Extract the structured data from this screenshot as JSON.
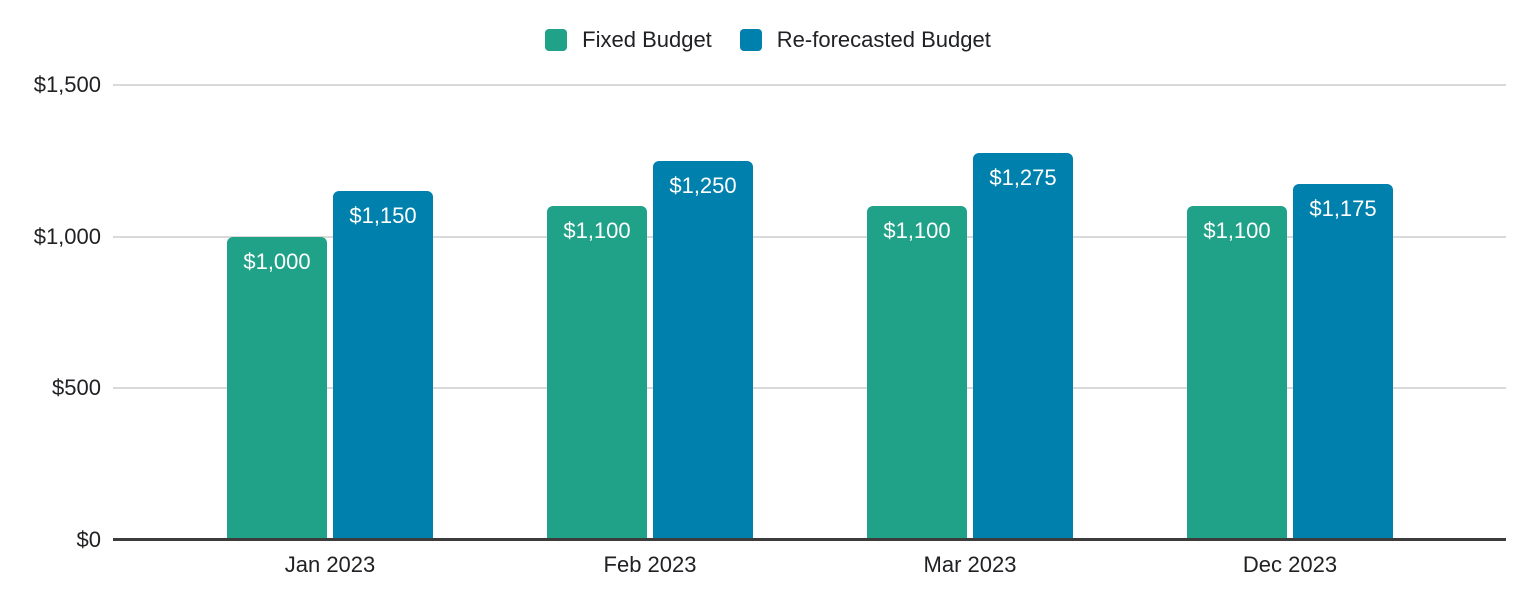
{
  "chart_data": {
    "type": "bar",
    "title": "",
    "xlabel": "",
    "ylabel": "",
    "categories": [
      "Jan 2023",
      "Feb 2023",
      "Mar 2023",
      "Dec 2023"
    ],
    "series": [
      {
        "name": "Fixed Budget",
        "color": "#1fa287",
        "values": [
          1000,
          1100,
          1100,
          1100
        ],
        "labels": [
          "$1,000",
          "$1,100",
          "$1,100",
          "$1,100"
        ]
      },
      {
        "name": "Re-forecasted Budget",
        "color": "#0080ac",
        "values": [
          1150,
          1250,
          1275,
          1175
        ],
        "labels": [
          "$1,150",
          "$1,250",
          "$1,275",
          "$1,175"
        ]
      }
    ],
    "ylim": [
      0,
      1500
    ],
    "yticks": [
      {
        "value": 0,
        "label": "$0"
      },
      {
        "value": 500,
        "label": "$500"
      },
      {
        "value": 1000,
        "label": "$1,000"
      },
      {
        "value": 1500,
        "label": "$1,500"
      }
    ],
    "grid": true,
    "legend_position": "top"
  },
  "colors": {
    "gridline": "#d9d9d9",
    "axis_line": "#3c3c3c",
    "tick_text": "#202124",
    "bar_label_text": "#ffffff",
    "background": "#ffffff"
  }
}
